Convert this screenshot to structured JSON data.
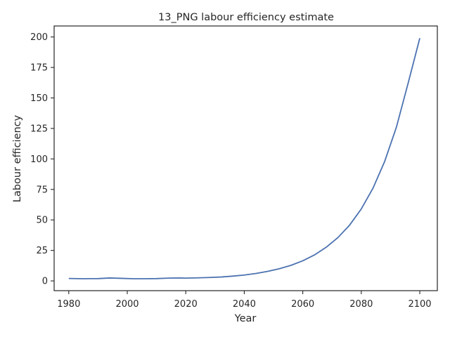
{
  "chart_data": {
    "type": "line",
    "title": "13_PNG labour efficiency estimate",
    "xlabel": "Year",
    "ylabel": "Labour efficiency",
    "xlim": [
      1975,
      2106
    ],
    "ylim": [
      -8,
      209
    ],
    "xticks": [
      1980,
      2000,
      2020,
      2040,
      2060,
      2080,
      2100
    ],
    "yticks": [
      0,
      25,
      50,
      75,
      100,
      125,
      150,
      175,
      200
    ],
    "grid": false,
    "legend": "none",
    "line_color": "#4c72b0",
    "series": [
      {
        "x": [
          1980,
          1985,
          1990,
          1994,
          1998,
          2002,
          2006,
          2010,
          2014,
          2018,
          2020,
          2024,
          2028,
          2032,
          2036,
          2040,
          2044,
          2048,
          2052,
          2056,
          2060,
          2064,
          2068,
          2072,
          2076,
          2080,
          2084,
          2088,
          2092,
          2096,
          2100
        ],
        "y": [
          2.0,
          1.8,
          1.9,
          2.4,
          2.1,
          1.8,
          1.8,
          1.9,
          2.3,
          2.4,
          2.3,
          2.5,
          2.8,
          3.2,
          3.9,
          4.8,
          6.1,
          7.8,
          10.0,
          12.8,
          16.5,
          21.3,
          27.6,
          35.5,
          45.7,
          59.0,
          76.0,
          98.0,
          126.0,
          162.0,
          199.0
        ]
      }
    ]
  }
}
